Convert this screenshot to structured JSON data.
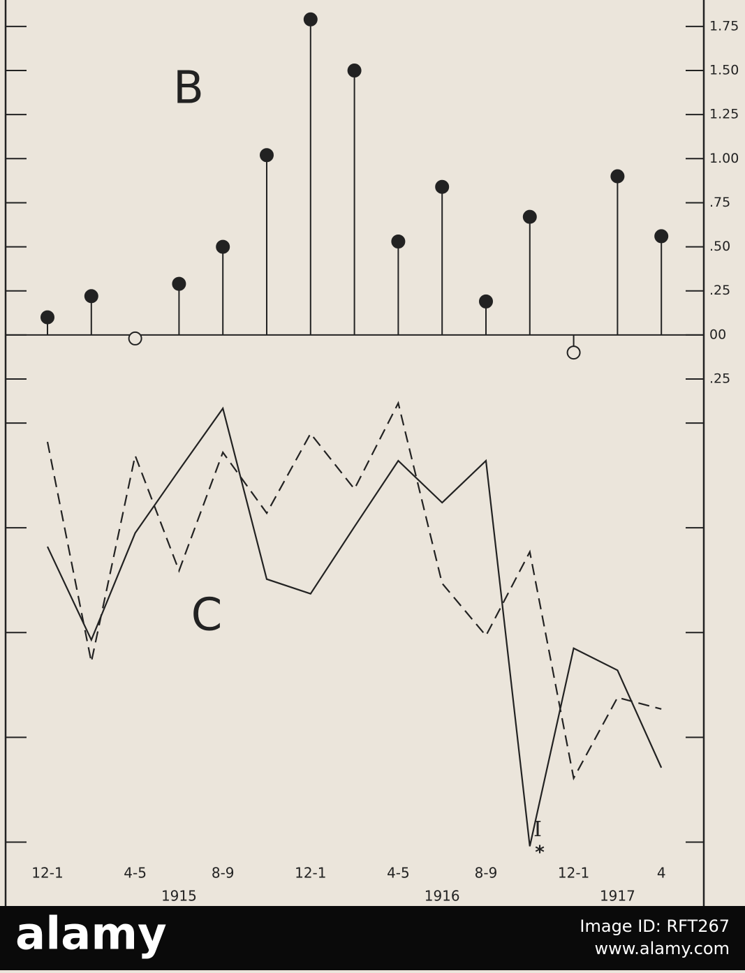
{
  "chart_data": [
    {
      "type": "lollipop",
      "label": "B",
      "values": [
        0.1,
        0.22,
        -0.02,
        0.29,
        0.5,
        1.02,
        1.79,
        1.5,
        0.53,
        0.84,
        0.19,
        0.67,
        -0.1,
        0.9,
        0.56
      ],
      "color": "#222",
      "negative_marker": "open",
      "ylim": [
        -0.25,
        1.9
      ],
      "yticks": [
        1.75,
        {
          "value": 1.5,
          "label": "1.50"
        },
        1.25,
        {
          "value": 1.0,
          "label": "1.00"
        },
        {
          "value": 0.75,
          "label": ".75"
        },
        {
          "value": 0.5,
          "label": ".50"
        },
        {
          "value": 0.25,
          "label": ".25"
        },
        {
          "value": 0,
          "label": "00"
        },
        {
          "value": -0.25,
          "label": ".25"
        }
      ]
    },
    {
      "type": "line",
      "label": "C",
      "categories": [
        "12-1",
        null,
        "4-5",
        null,
        "8-9",
        null,
        "12-1",
        null,
        "4-5",
        null,
        "8-9",
        null,
        "12-1",
        null,
        "4"
      ],
      "groups": [
        {
          "label": "1915",
          "from": 0,
          "to": 6
        },
        {
          "label": "1916",
          "from": 6,
          "to": 12
        },
        {
          "label": "1917",
          "from": 12,
          "to": 14
        }
      ],
      "series": [
        {
          "style": "solid",
          "color": "#222",
          "values": [
            2.82,
            1.93,
            2.95,
            3.55,
            4.14,
            2.51,
            2.37,
            3.01,
            3.64,
            3.24,
            3.64,
            -0.04,
            1.85,
            1.64,
            0.71
          ]
        },
        {
          "style": "dashed",
          "color": "#222",
          "values": [
            3.82,
            1.72,
            3.69,
            2.59,
            3.72,
            3.14,
            3.9,
            3.37,
            4.19,
            2.47,
            1.97,
            2.77,
            0.61,
            1.38,
            1.27
          ]
        }
      ],
      "annotations": [
        "I",
        "*"
      ],
      "ylim": [
        -0.61,
        4.84
      ],
      "yticks": [
        0,
        1,
        2,
        3,
        4
      ],
      "tick_labels": false
    }
  ],
  "footer": {
    "brand": "alamy",
    "image_id": "Image ID: RFT267",
    "url": "www.alamy.com"
  }
}
